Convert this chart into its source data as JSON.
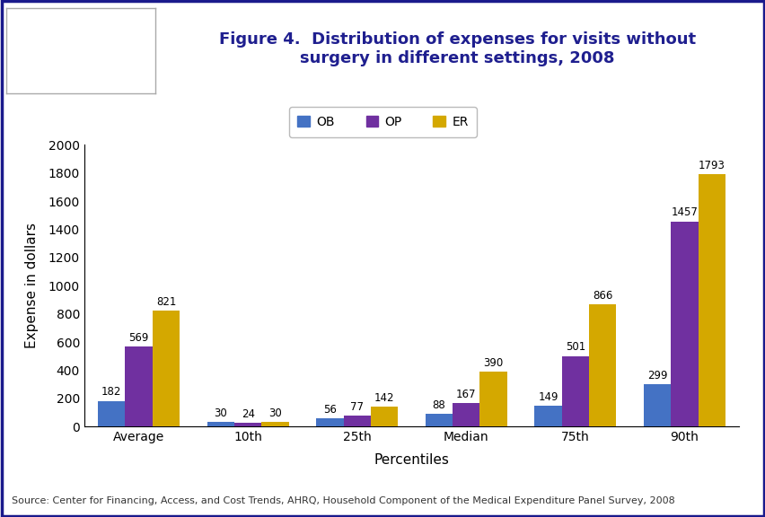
{
  "title": "Figure 4.  Distribution of expenses for visits without\nsurgery in different settings, 2008",
  "title_color": "#1F1F8F",
  "categories": [
    "Average",
    "10th",
    "25th",
    "Median",
    "75th",
    "90th"
  ],
  "xlabel": "Percentiles",
  "ylabel": "Expense in dollars",
  "ylim": [
    0,
    2000
  ],
  "yticks": [
    0,
    200,
    400,
    600,
    800,
    1000,
    1200,
    1400,
    1600,
    1800,
    2000
  ],
  "series": {
    "OB": {
      "values": [
        182,
        30,
        56,
        88,
        149,
        299
      ],
      "color": "#4472C4"
    },
    "OP": {
      "values": [
        569,
        24,
        77,
        167,
        501,
        1457
      ],
      "color": "#7030A0"
    },
    "ER": {
      "values": [
        821,
        30,
        142,
        390,
        866,
        1793
      ],
      "color": "#D4A800"
    }
  },
  "legend_labels": [
    "OB",
    "OP",
    "ER"
  ],
  "bar_width": 0.25,
  "source_text": "Source: Center for Financing, Access, and Cost Trends, AHRQ, Household Component of the Medical Expenditure Panel Survey, 2008",
  "background_color": "#FFFFFF",
  "border_color": "#1A1A8C",
  "label_fontsize": 10,
  "title_fontsize": 13,
  "source_fontsize": 8,
  "annotation_fontsize": 8.5
}
